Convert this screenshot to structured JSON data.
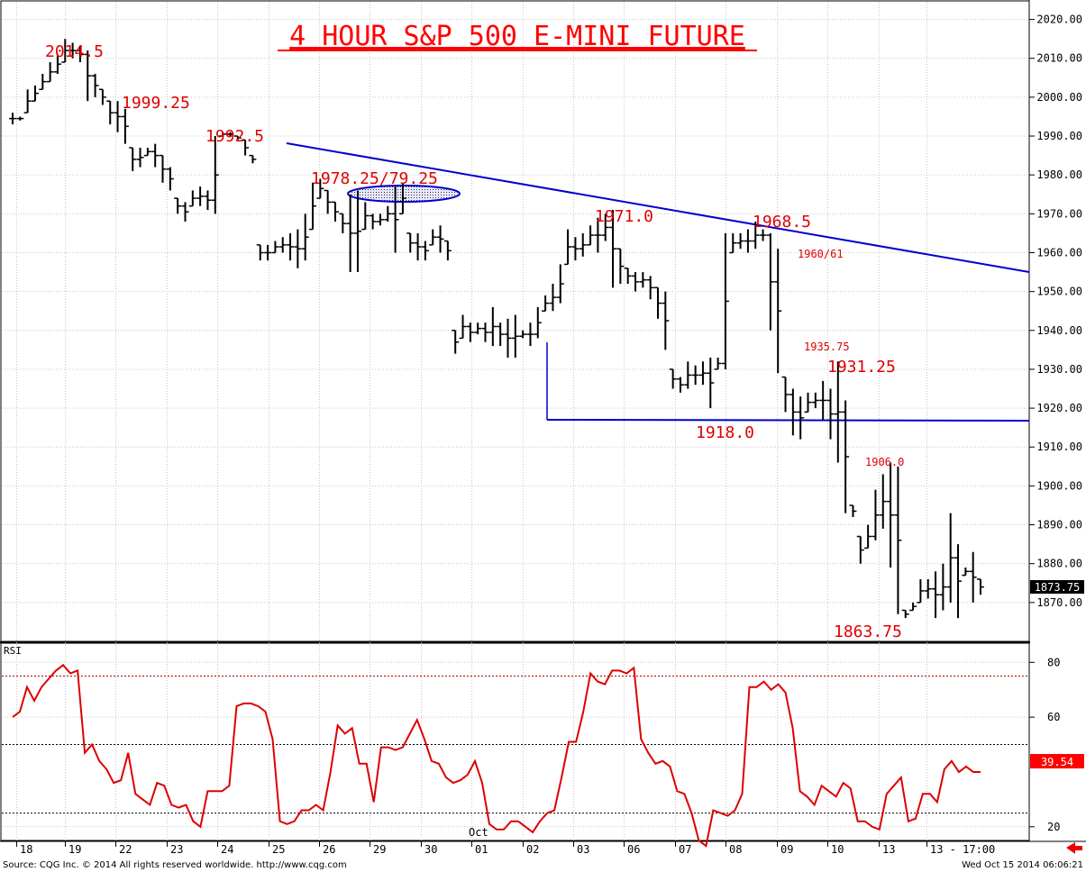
{
  "chart_data": [
    {
      "type": "ohlc",
      "title": "4 HOUR S&P 500 E-MINI FUTURE",
      "ylim": [
        1860,
        2025
      ],
      "y_ticks": [
        "2020.00",
        "2010.00",
        "2000.00",
        "1990.00",
        "1980.00",
        "1970.00",
        "1960.00",
        "1950.00",
        "1940.00",
        "1930.00",
        "1920.00",
        "1910.00",
        "1900.00",
        "1890.00",
        "1880.00",
        "1870.00"
      ],
      "last_price_label": "1873.75",
      "x_ticks": [
        "18",
        "19",
        "22",
        "23",
        "24",
        "25",
        "26",
        "29",
        "30",
        "01",
        "02",
        "03",
        "06",
        "07",
        "08",
        "09",
        "10",
        "13",
        "13 - 17:00"
      ],
      "month_label": "Oct",
      "series": [
        {
          "values": [
            [
              1996,
              1993
            ],
            [
              1995,
              1994
            ],
            [
              2002,
              1996
            ],
            [
              2003,
              1999
            ],
            [
              2006,
              2002
            ],
            [
              2009,
              2004
            ],
            [
              2011,
              2006
            ],
            [
              2015,
              2009
            ],
            [
              2014,
              2010
            ],
            [
              2013,
              2009
            ],
            [
              2012,
              1999
            ],
            [
              2006,
              2000
            ],
            [
              2002,
              1998
            ],
            [
              1999,
              1993
            ],
            [
              1999,
              1991
            ],
            [
              1997,
              1988
            ],
            [
              1987,
              1981
            ],
            [
              1987,
              1982
            ],
            [
              1987,
              1985
            ],
            [
              1988,
              1982
            ],
            [
              1985,
              1978
            ],
            [
              1982,
              1976
            ],
            [
              1974,
              1970
            ],
            [
              1973,
              1968
            ],
            [
              1976,
              1972
            ],
            [
              1977,
              1972
            ],
            [
              1976,
              1971
            ],
            [
              1990,
              1970
            ],
            [
              1991,
              1990
            ],
            [
              1991,
              1990
            ],
            [
              1990,
              1989
            ],
            [
              1989,
              1985
            ],
            [
              1985,
              1983
            ],
            [
              1962,
              1958
            ],
            [
              1962,
              1958
            ],
            [
              1963,
              1960
            ],
            [
              1964,
              1960
            ],
            [
              1965,
              1958
            ],
            [
              1966,
              1956
            ],
            [
              1970,
              1958
            ],
            [
              1978,
              1966
            ],
            [
              1979,
              1974
            ],
            [
              1976,
              1970
            ],
            [
              1973,
              1968
            ],
            [
              1970,
              1965
            ],
            [
              1975,
              1955
            ],
            [
              1976,
              1955
            ],
            [
              1973,
              1966
            ],
            [
              1970,
              1966
            ],
            [
              1970,
              1967
            ],
            [
              1972,
              1968
            ],
            [
              1977,
              1960
            ],
            [
              1978,
              1970
            ],
            [
              1965,
              1960
            ],
            [
              1965,
              1958
            ],
            [
              1963,
              1958
            ],
            [
              1966,
              1962
            ],
            [
              1967,
              1960
            ],
            [
              1963,
              1958
            ],
            [
              1940,
              1934
            ],
            [
              1944,
              1938
            ],
            [
              1942,
              1937
            ],
            [
              1942,
              1939
            ],
            [
              1942,
              1937
            ],
            [
              1946,
              1936
            ],
            [
              1942,
              1936
            ],
            [
              1943,
              1933
            ],
            [
              1944,
              1933
            ],
            [
              1940,
              1938
            ],
            [
              1942,
              1936
            ],
            [
              1946,
              1938
            ],
            [
              1949,
              1945
            ],
            [
              1952,
              1945
            ],
            [
              1957,
              1947
            ],
            [
              1966,
              1957
            ],
            [
              1964,
              1958
            ],
            [
              1965,
              1959
            ],
            [
              1967,
              1962
            ],
            [
              1969,
              1960
            ],
            [
              1970,
              1963
            ],
            [
              1971,
              1951
            ],
            [
              1961,
              1952
            ],
            [
              1956,
              1952
            ],
            [
              1955,
              1950
            ],
            [
              1955,
              1951
            ],
            [
              1954,
              1948
            ],
            [
              1951,
              1943
            ],
            [
              1950,
              1935
            ],
            [
              1930,
              1925
            ],
            [
              1928,
              1924
            ],
            [
              1932,
              1925
            ],
            [
              1931,
              1926
            ],
            [
              1932,
              1926
            ],
            [
              1933,
              1920
            ],
            [
              1933,
              1930
            ],
            [
              1965,
              1930
            ],
            [
              1965,
              1960
            ],
            [
              1965,
              1961
            ],
            [
              1966,
              1960
            ],
            [
              1968,
              1961
            ],
            [
              1966,
              1963
            ],
            [
              1965,
              1940
            ],
            [
              1961,
              1929
            ],
            [
              1928,
              1919
            ],
            [
              1925,
              1913
            ],
            [
              1923,
              1912
            ],
            [
              1924,
              1919
            ],
            [
              1924,
              1920
            ],
            [
              1927,
              1917
            ],
            [
              1925,
              1912
            ],
            [
              1932,
              1906
            ],
            [
              1922,
              1893
            ],
            [
              1895,
              1892
            ],
            [
              1887,
              1880
            ],
            [
              1890,
              1884
            ],
            [
              1899,
              1886
            ],
            [
              1903,
              1889
            ],
            [
              1906,
              1879
            ],
            [
              1905,
              1867
            ],
            [
              1868,
              1866
            ],
            [
              1870,
              1868
            ],
            [
              1876,
              1870
            ],
            [
              1876,
              1871
            ],
            [
              1878,
              1866
            ],
            [
              1880,
              1868
            ],
            [
              1893,
              1870
            ],
            [
              1885,
              1866
            ],
            [
              1879,
              1877
            ],
            [
              1883,
              1870
            ],
            [
              1876,
              1872
            ]
          ]
        }
      ],
      "annotations": [
        "2014.5",
        "1999.25",
        "1992.5",
        "1978.25/79.25",
        "1971.0",
        "1968.5",
        "1960/61",
        "1935.75",
        "1931.25",
        "1918.0",
        "1906.0",
        "1863.75"
      ]
    },
    {
      "type": "line",
      "title": "RSI",
      "ylim": [
        15,
        87
      ],
      "y_ticks": [
        "80",
        "60",
        "20"
      ],
      "last_value_label": "39.54",
      "reference_lines": [
        75,
        50,
        25
      ],
      "values": [
        60,
        62,
        71,
        66,
        71,
        74,
        77,
        79,
        76,
        77,
        47,
        50,
        44,
        41,
        36,
        37,
        47,
        32,
        30,
        28,
        36,
        35,
        28,
        27,
        28,
        22,
        20,
        33,
        33,
        33,
        35,
        64,
        65,
        65,
        64,
        62,
        52,
        22,
        21,
        22,
        26,
        26,
        28,
        26,
        40,
        57,
        54,
        56,
        43,
        43,
        29,
        49,
        49,
        48,
        49,
        54,
        59,
        52,
        44,
        43,
        38,
        36,
        37,
        39,
        44,
        36,
        21,
        19,
        19,
        22,
        22,
        20,
        18,
        22,
        25,
        26,
        38,
        51,
        51,
        62,
        76,
        73,
        72,
        77,
        77,
        76,
        78,
        52,
        47,
        43,
        44,
        42,
        33,
        32,
        25,
        15,
        13,
        26,
        25,
        24,
        26,
        32,
        71,
        71,
        73,
        70,
        72,
        69,
        56,
        33,
        31,
        28,
        35,
        33,
        31,
        36,
        34,
        22,
        22,
        20,
        19,
        32,
        35,
        38,
        22,
        23,
        32,
        32,
        29,
        41,
        44,
        40,
        42,
        40,
        40
      ]
    }
  ],
  "footer": {
    "source": "Source: CQG Inc. © 2014 All rights reserved worldwide. http://www.cqg.com",
    "timestamp": "Wed Oct 15 2014 06:06:21"
  },
  "colors": {
    "bars": "#000000",
    "annotation": "#e00000",
    "trendline": "#0000cc",
    "rsi_line": "#dd0000",
    "price_tag": "#000000",
    "rsi_tag": "#ff0000"
  },
  "icons": {
    "nav": "red-left-arrow-icon"
  }
}
